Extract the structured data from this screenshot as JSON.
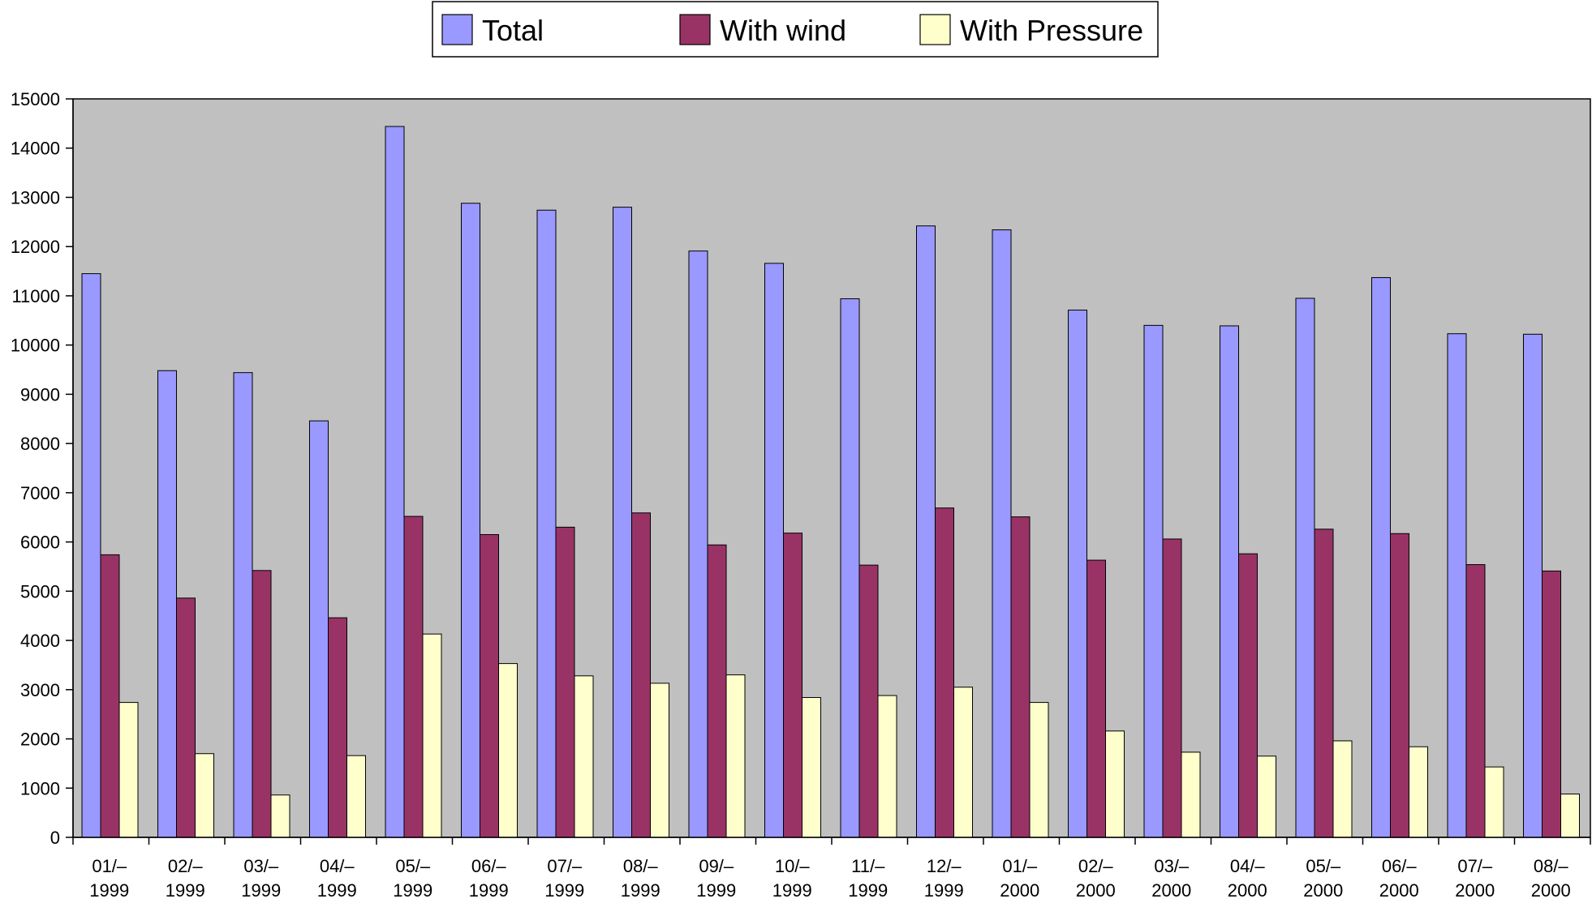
{
  "chart_data": {
    "type": "bar",
    "title": "",
    "xlabel": "",
    "ylabel": "",
    "ylim": [
      0,
      15000
    ],
    "yticks": [
      0,
      1000,
      2000,
      3000,
      4000,
      5000,
      6000,
      7000,
      8000,
      9000,
      10000,
      11000,
      12000,
      13000,
      14000,
      15000
    ],
    "grid": false,
    "legend_position": "top-center",
    "plot_background": "#c0c0c0",
    "categories": [
      [
        "01/–",
        "1999"
      ],
      [
        "02/–",
        "1999"
      ],
      [
        "03/–",
        "1999"
      ],
      [
        "04/–",
        "1999"
      ],
      [
        "05/–",
        "1999"
      ],
      [
        "06/–",
        "1999"
      ],
      [
        "07/–",
        "1999"
      ],
      [
        "08/–",
        "1999"
      ],
      [
        "09/–",
        "1999"
      ],
      [
        "10/–",
        "1999"
      ],
      [
        "11/–",
        "1999"
      ],
      [
        "12/–",
        "1999"
      ],
      [
        "01/–",
        "2000"
      ],
      [
        "02/–",
        "2000"
      ],
      [
        "03/–",
        "2000"
      ],
      [
        "04/–",
        "2000"
      ],
      [
        "05/–",
        "2000"
      ],
      [
        "06/–",
        "2000"
      ],
      [
        "07/–",
        "2000"
      ],
      [
        "08/–",
        "2000"
      ]
    ],
    "series": [
      {
        "name": "Total",
        "color": "#9999ff",
        "values": [
          11450,
          9480,
          9440,
          8460,
          14440,
          12880,
          12740,
          12800,
          11910,
          11660,
          10940,
          12420,
          12340,
          10710,
          10400,
          10390,
          10950,
          11370,
          10230,
          10220
        ]
      },
      {
        "name": "With wind",
        "color": "#993366",
        "values": [
          5740,
          4860,
          5420,
          4460,
          6520,
          6150,
          6300,
          6590,
          5940,
          6180,
          5530,
          6690,
          6510,
          5630,
          6060,
          5760,
          6260,
          6170,
          5540,
          5410
        ]
      },
      {
        "name": "With Pressure",
        "color": "#ffffcc",
        "values": [
          2740,
          1700,
          860,
          1660,
          4130,
          3530,
          3280,
          3130,
          3300,
          2840,
          2880,
          3050,
          2740,
          2160,
          1730,
          1650,
          1960,
          1840,
          1430,
          880
        ]
      }
    ]
  }
}
